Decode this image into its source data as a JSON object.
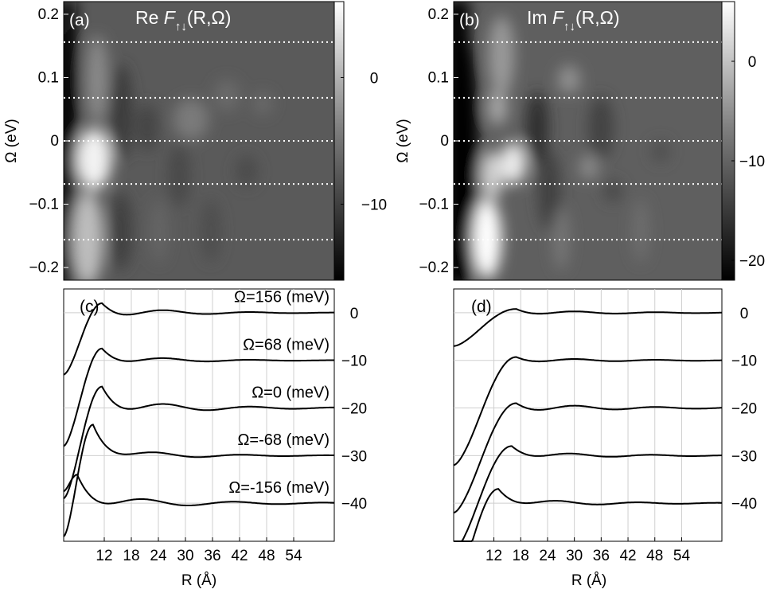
{
  "chart_data": [
    {
      "id": "a",
      "type": "heatmap",
      "panel_label": "(a)",
      "title": "Re F↑↓(R,Ω)",
      "title_prefix": "Re",
      "title_symbol": "F",
      "title_subscript": "↑↓",
      "title_args": "(R,Ω)",
      "ylabel": "Ω (eV)",
      "ylim": [
        -0.22,
        0.22
      ],
      "yticks": [
        "0.2",
        "0.1",
        "0",
        "−0.1",
        "−0.2"
      ],
      "ytick_values": [
        0.2,
        0.1,
        0,
        -0.1,
        -0.2
      ],
      "xlim": [
        3,
        63
      ],
      "colorbar": {
        "ticks": [
          "0",
          "−10"
        ],
        "tick_values": [
          0,
          -10
        ],
        "range": [
          -16,
          6
        ]
      },
      "dashed_lines_omega": [
        0.156,
        0.068,
        0,
        -0.068,
        -0.156
      ],
      "background_value": -4
    },
    {
      "id": "b",
      "type": "heatmap",
      "panel_label": "(b)",
      "title": "Im F↑↓(R,Ω)",
      "title_prefix": "Im",
      "title_symbol": "F",
      "title_subscript": "↑↓",
      "title_args": "(R,Ω)",
      "ylabel": "Ω (eV)",
      "ylim": [
        -0.22,
        0.22
      ],
      "yticks": [
        "0.2",
        "0.1",
        "0",
        "−0.1",
        "−0.2"
      ],
      "ytick_values": [
        0.2,
        0.1,
        0,
        -0.1,
        -0.2
      ],
      "xlim": [
        3,
        63
      ],
      "colorbar": {
        "ticks": [
          "0",
          "−10",
          "−20"
        ],
        "tick_values": [
          0,
          -10,
          -20
        ],
        "range": [
          -22,
          6
        ]
      },
      "dashed_lines_omega": [
        0.156,
        0.068,
        0,
        -0.068,
        -0.156
      ],
      "background_value": -6
    },
    {
      "id": "c",
      "type": "line",
      "panel_label": "(c)",
      "xlabel": "R (Å)",
      "xlim": [
        3,
        63
      ],
      "xticks": [
        12,
        18,
        24,
        30,
        36,
        42,
        48,
        54
      ],
      "ylim": [
        -48,
        5
      ],
      "right_ticks": [
        "0",
        "−10",
        "−20",
        "−30",
        "−40"
      ],
      "right_tick_values": [
        0,
        -10,
        -20,
        -30,
        -40
      ],
      "series": [
        {
          "name": "Ω=156 (meV)",
          "offset": 0,
          "start": -13,
          "peak": 2.0,
          "peak_x": 11.5,
          "osc": 1.2,
          "wave_lambda": 19,
          "decay": 16
        },
        {
          "name": "Ω=68 (meV)",
          "offset": -10,
          "start": -18,
          "peak": 2.5,
          "peak_x": 11.5,
          "osc": 1.0,
          "wave_lambda": 19,
          "decay": 16
        },
        {
          "name": "Ω=0 (meV)",
          "offset": -20,
          "start": -19,
          "peak": 4.5,
          "peak_x": 11.5,
          "osc": 1.5,
          "wave_lambda": 19,
          "decay": 20
        },
        {
          "name": "Ω=-68 (meV)",
          "offset": -30,
          "start": -17,
          "peak": 6.5,
          "peak_x": 9.5,
          "osc": 1.2,
          "wave_lambda": 19,
          "decay": 18
        },
        {
          "name": "Ω=-156 (meV)",
          "offset": -40,
          "start": 2.5,
          "peak": 6.0,
          "peak_x": 6.0,
          "osc": 1.5,
          "wave_lambda": 20,
          "decay": 22
        }
      ]
    },
    {
      "id": "d",
      "type": "line",
      "panel_label": "(d)",
      "xlabel": "R (Å)",
      "xlim": [
        3,
        63
      ],
      "xticks": [
        12,
        18,
        24,
        30,
        36,
        42,
        48,
        54
      ],
      "ylim": [
        -48,
        5
      ],
      "right_ticks": [
        "0",
        "−10",
        "−20",
        "−30",
        "−40"
      ],
      "right_tick_values": [
        0,
        -10,
        -20,
        -30,
        -40
      ],
      "series": [
        {
          "name": "0",
          "offset": 0,
          "start": -7,
          "peak": 0.8,
          "peak_x": 17,
          "osc": 0.5,
          "wave_lambda": 18,
          "decay": 22,
          "gap": true
        },
        {
          "name": "-10",
          "offset": -10,
          "start": -22,
          "peak": 0.7,
          "peak_x": 17,
          "osc": 0.5,
          "wave_lambda": 18,
          "decay": 22
        },
        {
          "name": "-20",
          "offset": -20,
          "start": -22,
          "peak": 1.0,
          "peak_x": 17,
          "osc": 0.8,
          "wave_lambda": 18,
          "decay": 24
        },
        {
          "name": "-30",
          "offset": -30,
          "start": -20,
          "peak": 2.0,
          "peak_x": 16,
          "osc": 0.7,
          "wave_lambda": 18,
          "decay": 22
        },
        {
          "name": "-40",
          "offset": -40,
          "start": -17,
          "peak": 3.0,
          "peak_x": 13,
          "osc": 0.8,
          "wave_lambda": 18,
          "decay": 22
        }
      ]
    }
  ]
}
